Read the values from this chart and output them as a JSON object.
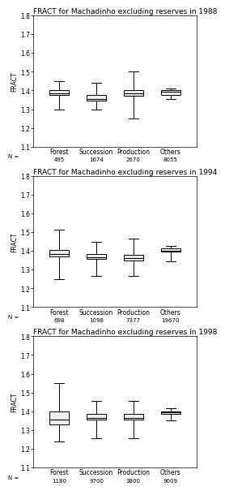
{
  "title_1988": "FRACT for Machadinho excluding reserves in 1988",
  "title_1994": "FRACT for Machadinho excluding reserves in 1994",
  "title_1998": "FRACT for Machadinho excluding reserves in 1998",
  "ylabel": "FRACT",
  "categories": [
    "Forest",
    "Succession",
    "Production",
    "Others"
  ],
  "n_labels_1988": [
    "495",
    "1674",
    "2670",
    "8055"
  ],
  "n_labels_1994": [
    "698",
    "1098",
    "7377",
    "19670"
  ],
  "n_labels_1998": [
    "1180",
    "9700",
    "3800",
    "9009"
  ],
  "ylim": [
    1.1,
    1.8
  ],
  "yticks": [
    1.1,
    1.2,
    1.3,
    1.4,
    1.5,
    1.6,
    1.7,
    1.8
  ],
  "boxes_1988": [
    {
      "whislo": 1.3,
      "q1": 1.375,
      "med": 1.385,
      "q3": 1.4,
      "whishi": 1.45
    },
    {
      "whislo": 1.3,
      "q1": 1.345,
      "med": 1.355,
      "q3": 1.375,
      "whishi": 1.44
    },
    {
      "whislo": 1.25,
      "q1": 1.37,
      "med": 1.385,
      "q3": 1.4,
      "whishi": 1.5
    },
    {
      "whislo": 1.355,
      "q1": 1.375,
      "med": 1.395,
      "q3": 1.4,
      "whishi": 1.41
    }
  ],
  "boxes_1994": [
    {
      "whislo": 1.25,
      "q1": 1.37,
      "med": 1.385,
      "q3": 1.405,
      "whishi": 1.515
    },
    {
      "whislo": 1.265,
      "q1": 1.355,
      "med": 1.365,
      "q3": 1.385,
      "whishi": 1.45
    },
    {
      "whislo": 1.265,
      "q1": 1.35,
      "med": 1.36,
      "q3": 1.38,
      "whishi": 1.465
    },
    {
      "whislo": 1.345,
      "q1": 1.395,
      "med": 1.4,
      "q3": 1.415,
      "whishi": 1.425
    }
  ],
  "boxes_1998": [
    {
      "whislo": 1.24,
      "q1": 1.33,
      "med": 1.355,
      "q3": 1.4,
      "whishi": 1.55
    },
    {
      "whislo": 1.255,
      "q1": 1.355,
      "med": 1.365,
      "q3": 1.385,
      "whishi": 1.455
    },
    {
      "whislo": 1.255,
      "q1": 1.355,
      "med": 1.365,
      "q3": 1.385,
      "whishi": 1.455
    },
    {
      "whislo": 1.35,
      "q1": 1.385,
      "med": 1.395,
      "q3": 1.4,
      "whishi": 1.415
    }
  ],
  "box_facecolor": "#f0f0f0",
  "median_color": "#000000",
  "whisker_color": "#000000",
  "bg_color": "#ffffff",
  "title_fontsize": 6.5,
  "label_fontsize": 5.5,
  "tick_fontsize": 5.5,
  "n_fontsize": 5.0
}
